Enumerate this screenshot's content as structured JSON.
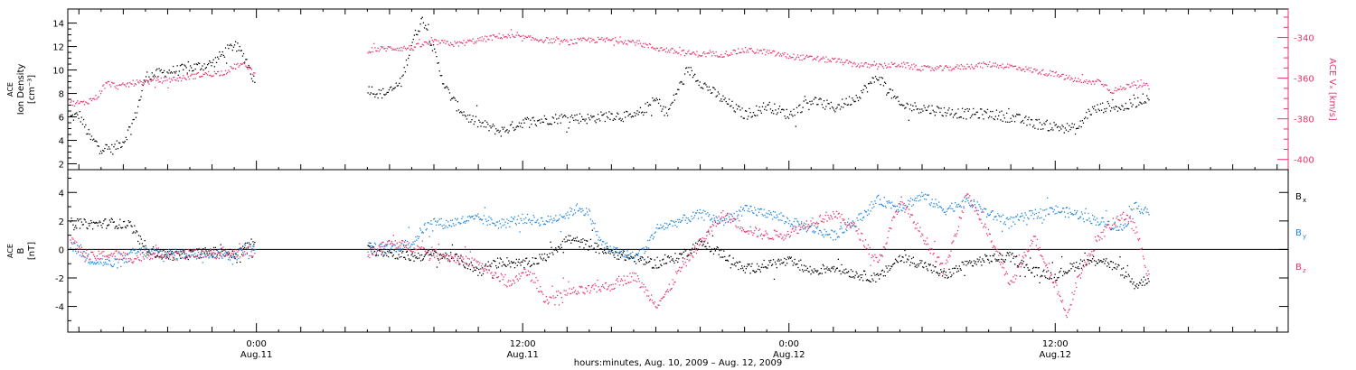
{
  "colors": {
    "black": "#000000",
    "blue": "#1f86e0",
    "red": "#e8346a",
    "axis": "#000000"
  },
  "time_axis": {
    "label": "hours:minutes, Aug. 10, 2009 – Aug. 12, 2009",
    "ticks": [
      {
        "hours": 24,
        "time": "0:00",
        "date": "Aug.11"
      },
      {
        "hours": 36,
        "time": "12:00",
        "date": "Aug.11"
      },
      {
        "hours": 48,
        "time": "0:00",
        "date": "Aug.12"
      },
      {
        "hours": 60,
        "time": "12:00",
        "date": "Aug.12"
      }
    ]
  },
  "chart_data": [
    {
      "type": "scatter",
      "panel": "top",
      "ylabel_lines": [
        "ACE",
        "Ion Density",
        "[cm⁻³]"
      ],
      "ylabel_right": "ACE  Vₓ  [km/s]",
      "xlim_hours": [
        15.5,
        70.5
      ],
      "ylim_left": [
        1.5,
        15.2
      ],
      "yticks_left": [
        "2",
        "4",
        "6",
        "8",
        "10",
        "12",
        "14"
      ],
      "ylim_right": [
        -405,
        -326
      ],
      "yticks_right": [
        "-340",
        "-360",
        "-380",
        "-400"
      ],
      "series": [
        {
          "axis": "left",
          "color": "black",
          "segments": [
            {
              "x": [
                15.6,
                16.0,
                16.5,
                17.0,
                17.5,
                18.0,
                18.5,
                19.0,
                19.5,
                20.0,
                21.0,
                22.0,
                22.5,
                23.0,
                23.5,
                23.9
              ],
              "y": [
                6.0,
                6.2,
                4.2,
                3.4,
                3.3,
                4.0,
                6.0,
                9.5,
                9.7,
                9.9,
                10.2,
                10.6,
                11.5,
                12.2,
                11.0,
                9.0
              ]
            },
            {
              "x": [
                29.0,
                29.5,
                30.0,
                30.5,
                31.0,
                31.5,
                32.0,
                32.5,
                33.0,
                33.5,
                34.0,
                35.0,
                36.0,
                37.0,
                38.0,
                39.0,
                40.0,
                41.0,
                42.0,
                42.5,
                43.0,
                43.5,
                44.0,
                45.0,
                46.0,
                47.0,
                48.0,
                49.0,
                50.0,
                51.0,
                52.0,
                53.0,
                54.0,
                55.0,
                56.0,
                57.0,
                58.0,
                59.0,
                60.0,
                61.0,
                61.5,
                62.0,
                62.5,
                63.0,
                63.5,
                64.2
              ],
              "y": [
                8.5,
                8.0,
                8.2,
                9.0,
                12.5,
                14.5,
                11.5,
                8.5,
                7.0,
                6.0,
                5.5,
                4.8,
                5.6,
                5.8,
                6.0,
                5.9,
                6.2,
                6.0,
                7.5,
                6.3,
                8.5,
                10.0,
                9.0,
                7.5,
                6.2,
                7.0,
                6.2,
                7.5,
                6.8,
                7.7,
                9.5,
                7.0,
                6.8,
                6.5,
                6.3,
                6.3,
                6.0,
                5.5,
                5.2,
                5.0,
                6.5,
                6.8,
                7.0,
                6.8,
                7.2,
                7.8
              ]
            }
          ]
        },
        {
          "axis": "right",
          "color": "red",
          "segments": [
            {
              "x": [
                15.6,
                16.2,
                16.8,
                17.2,
                17.8,
                18.5,
                19.5,
                20.5,
                21.5,
                22.5,
                23.2,
                23.6,
                23.9
              ],
              "y": [
                -372,
                -372,
                -369,
                -362,
                -364,
                -362,
                -361,
                -360,
                -358,
                -357,
                -353,
                -354,
                -358
              ]
            },
            {
              "x": [
                29.0,
                30.0,
                31.0,
                31.5,
                32.0,
                33.0,
                34.0,
                35.0,
                36.0,
                37.0,
                38.0,
                39.0,
                40.0,
                41.0,
                42.0,
                43.0,
                44.0,
                45.0,
                46.0,
                47.0,
                48.0,
                49.0,
                50.0,
                51.0,
                52.0,
                53.0,
                54.0,
                55.0,
                56.0,
                57.0,
                58.0,
                59.0,
                60.0,
                61.0,
                61.5,
                62.0,
                62.5,
                63.0,
                63.5,
                64.2
              ],
              "y": [
                -346,
                -345,
                -345,
                -343,
                -342,
                -343,
                -341,
                -339,
                -340,
                -341,
                -342,
                -341,
                -341,
                -342,
                -345,
                -347,
                -348,
                -348,
                -346,
                -347,
                -349,
                -350,
                -351,
                -353,
                -354,
                -353,
                -355,
                -355,
                -354,
                -353,
                -354,
                -356,
                -358,
                -361,
                -362,
                -361,
                -366,
                -365,
                -362,
                -364
              ]
            }
          ]
        }
      ]
    },
    {
      "type": "scatter",
      "panel": "bottom",
      "ylabel_lines": [
        "ACE",
        "B",
        "[nT]"
      ],
      "xlim_hours": [
        15.5,
        70.5
      ],
      "ylim": [
        -5.8,
        5.6
      ],
      "yticks": [
        "4",
        "2",
        "0",
        "-2",
        "-4"
      ],
      "legend": [
        "Bₓ",
        "Bᵧ",
        "B_z"
      ],
      "series": [
        {
          "name": "Bₓ",
          "legend_label": "B",
          "legend_sub": "x",
          "color": "black",
          "segments": [
            {
              "x": [
                15.6,
                16.5,
                17.5,
                18.3,
                18.8,
                19.5,
                20.5,
                21.5,
                22.5,
                23.0,
                23.5,
                23.9
              ],
              "y": [
                1.9,
                1.8,
                1.9,
                1.7,
                0.5,
                -0.3,
                -0.4,
                -0.2,
                -0.1,
                -0.4,
                0.2,
                0.7
              ]
            },
            {
              "x": [
                29.0,
                30.0,
                31.0,
                32.0,
                33.0,
                34.0,
                35.0,
                36.0,
                37.0,
                38.0,
                39.0,
                40.0,
                41.0,
                42.0,
                43.0,
                44.0,
                45.0,
                46.0,
                47.0,
                48.0,
                49.0,
                50.0,
                51.0,
                52.0,
                53.0,
                54.0,
                55.0,
                56.0,
                57.0,
                58.0,
                59.0,
                60.0,
                61.0,
                62.0,
                63.0,
                63.6,
                64.2
              ],
              "y": [
                0.0,
                -0.2,
                -0.5,
                -0.3,
                -0.6,
                -1.5,
                -0.8,
                -1.0,
                -0.5,
                0.8,
                0.3,
                -0.2,
                -0.6,
                -1.0,
                -0.5,
                0.5,
                -0.3,
                -1.4,
                -1.0,
                -0.8,
                -1.5,
                -1.2,
                -1.7,
                -2.0,
                -0.5,
                -1.0,
                -1.8,
                -1.0,
                -0.6,
                -0.5,
                -1.5,
                -1.8,
                -1.0,
                -0.6,
                -1.5,
                -2.5,
                -2.0
              ]
            }
          ]
        },
        {
          "name": "Bᵧ",
          "legend_label": "B",
          "legend_sub": "y",
          "color": "blue",
          "segments": [
            {
              "x": [
                15.6,
                16.5,
                17.5,
                18.0,
                18.5,
                19.5,
                20.5,
                21.5,
                22.5,
                23.0,
                23.5,
                23.9
              ],
              "y": [
                0.4,
                -0.7,
                -1.0,
                -0.8,
                -0.1,
                -0.2,
                -0.3,
                -0.2,
                -0.3,
                -0.5,
                0.2,
                0.0
              ]
            },
            {
              "x": [
                29.0,
                30.0,
                31.0,
                31.5,
                32.0,
                32.5,
                33.0,
                34.0,
                35.0,
                36.0,
                37.0,
                38.0,
                38.5,
                39.0,
                39.5,
                40.0,
                41.0,
                41.5,
                42.0,
                43.0,
                44.0,
                45.0,
                46.0,
                47.0,
                48.0,
                49.0,
                50.0,
                51.0,
                52.0,
                53.0,
                54.0,
                55.0,
                56.0,
                57.0,
                58.0,
                59.0,
                60.0,
                61.0,
                62.0,
                63.0,
                63.6,
                64.2
              ],
              "y": [
                0.2,
                0.1,
                0.5,
                1.5,
                2.0,
                1.8,
                2.0,
                2.2,
                1.8,
                2.2,
                2.0,
                2.5,
                3.0,
                2.5,
                0.5,
                0.0,
                -0.5,
                0.0,
                1.5,
                2.0,
                2.5,
                2.0,
                2.8,
                2.6,
                2.0,
                1.5,
                1.0,
                2.0,
                3.5,
                3.0,
                3.8,
                2.8,
                3.5,
                2.5,
                2.0,
                2.5,
                2.8,
                2.5,
                2.0,
                1.5,
                3.0,
                2.8
              ]
            }
          ]
        },
        {
          "name": "B_z",
          "legend_label": "B",
          "legend_sub": "z",
          "color": "red",
          "segments": [
            {
              "x": [
                15.6,
                16.5,
                17.5,
                18.5,
                19.5,
                20.5,
                21.5,
                22.5,
                23.5,
                23.9
              ],
              "y": [
                0.6,
                -0.5,
                -0.3,
                -0.6,
                -0.2,
                -0.4,
                -0.2,
                -0.3,
                -0.1,
                -0.1
              ]
            },
            {
              "x": [
                29.0,
                30.0,
                31.0,
                32.0,
                33.0,
                34.0,
                35.0,
                35.5,
                36.0,
                36.5,
                37.0,
                38.0,
                39.0,
                40.0,
                41.0,
                42.0,
                42.5,
                43.0,
                44.0,
                45.0,
                46.0,
                47.0,
                48.0,
                49.0,
                50.0,
                51.0,
                52.0,
                53.0,
                54.0,
                55.0,
                56.0,
                57.0,
                58.0,
                59.0,
                60.0,
                60.5,
                61.0,
                62.0,
                63.0,
                63.6,
                64.2
              ],
              "y": [
                -0.3,
                0.5,
                0.2,
                -0.2,
                -0.6,
                -1.0,
                -2.0,
                -2.5,
                -1.5,
                -2.0,
                -3.5,
                -3.0,
                -2.8,
                -2.5,
                -1.8,
                -3.8,
                -3.0,
                -1.5,
                0.5,
                2.5,
                1.5,
                1.0,
                1.2,
                2.0,
                2.5,
                1.5,
                -1.0,
                3.5,
                1.0,
                -1.5,
                4.0,
                1.0,
                -2.5,
                1.0,
                -2.5,
                -4.5,
                -2.0,
                1.0,
                2.5,
                1.5,
                -2.0
              ]
            }
          ]
        }
      ]
    }
  ]
}
